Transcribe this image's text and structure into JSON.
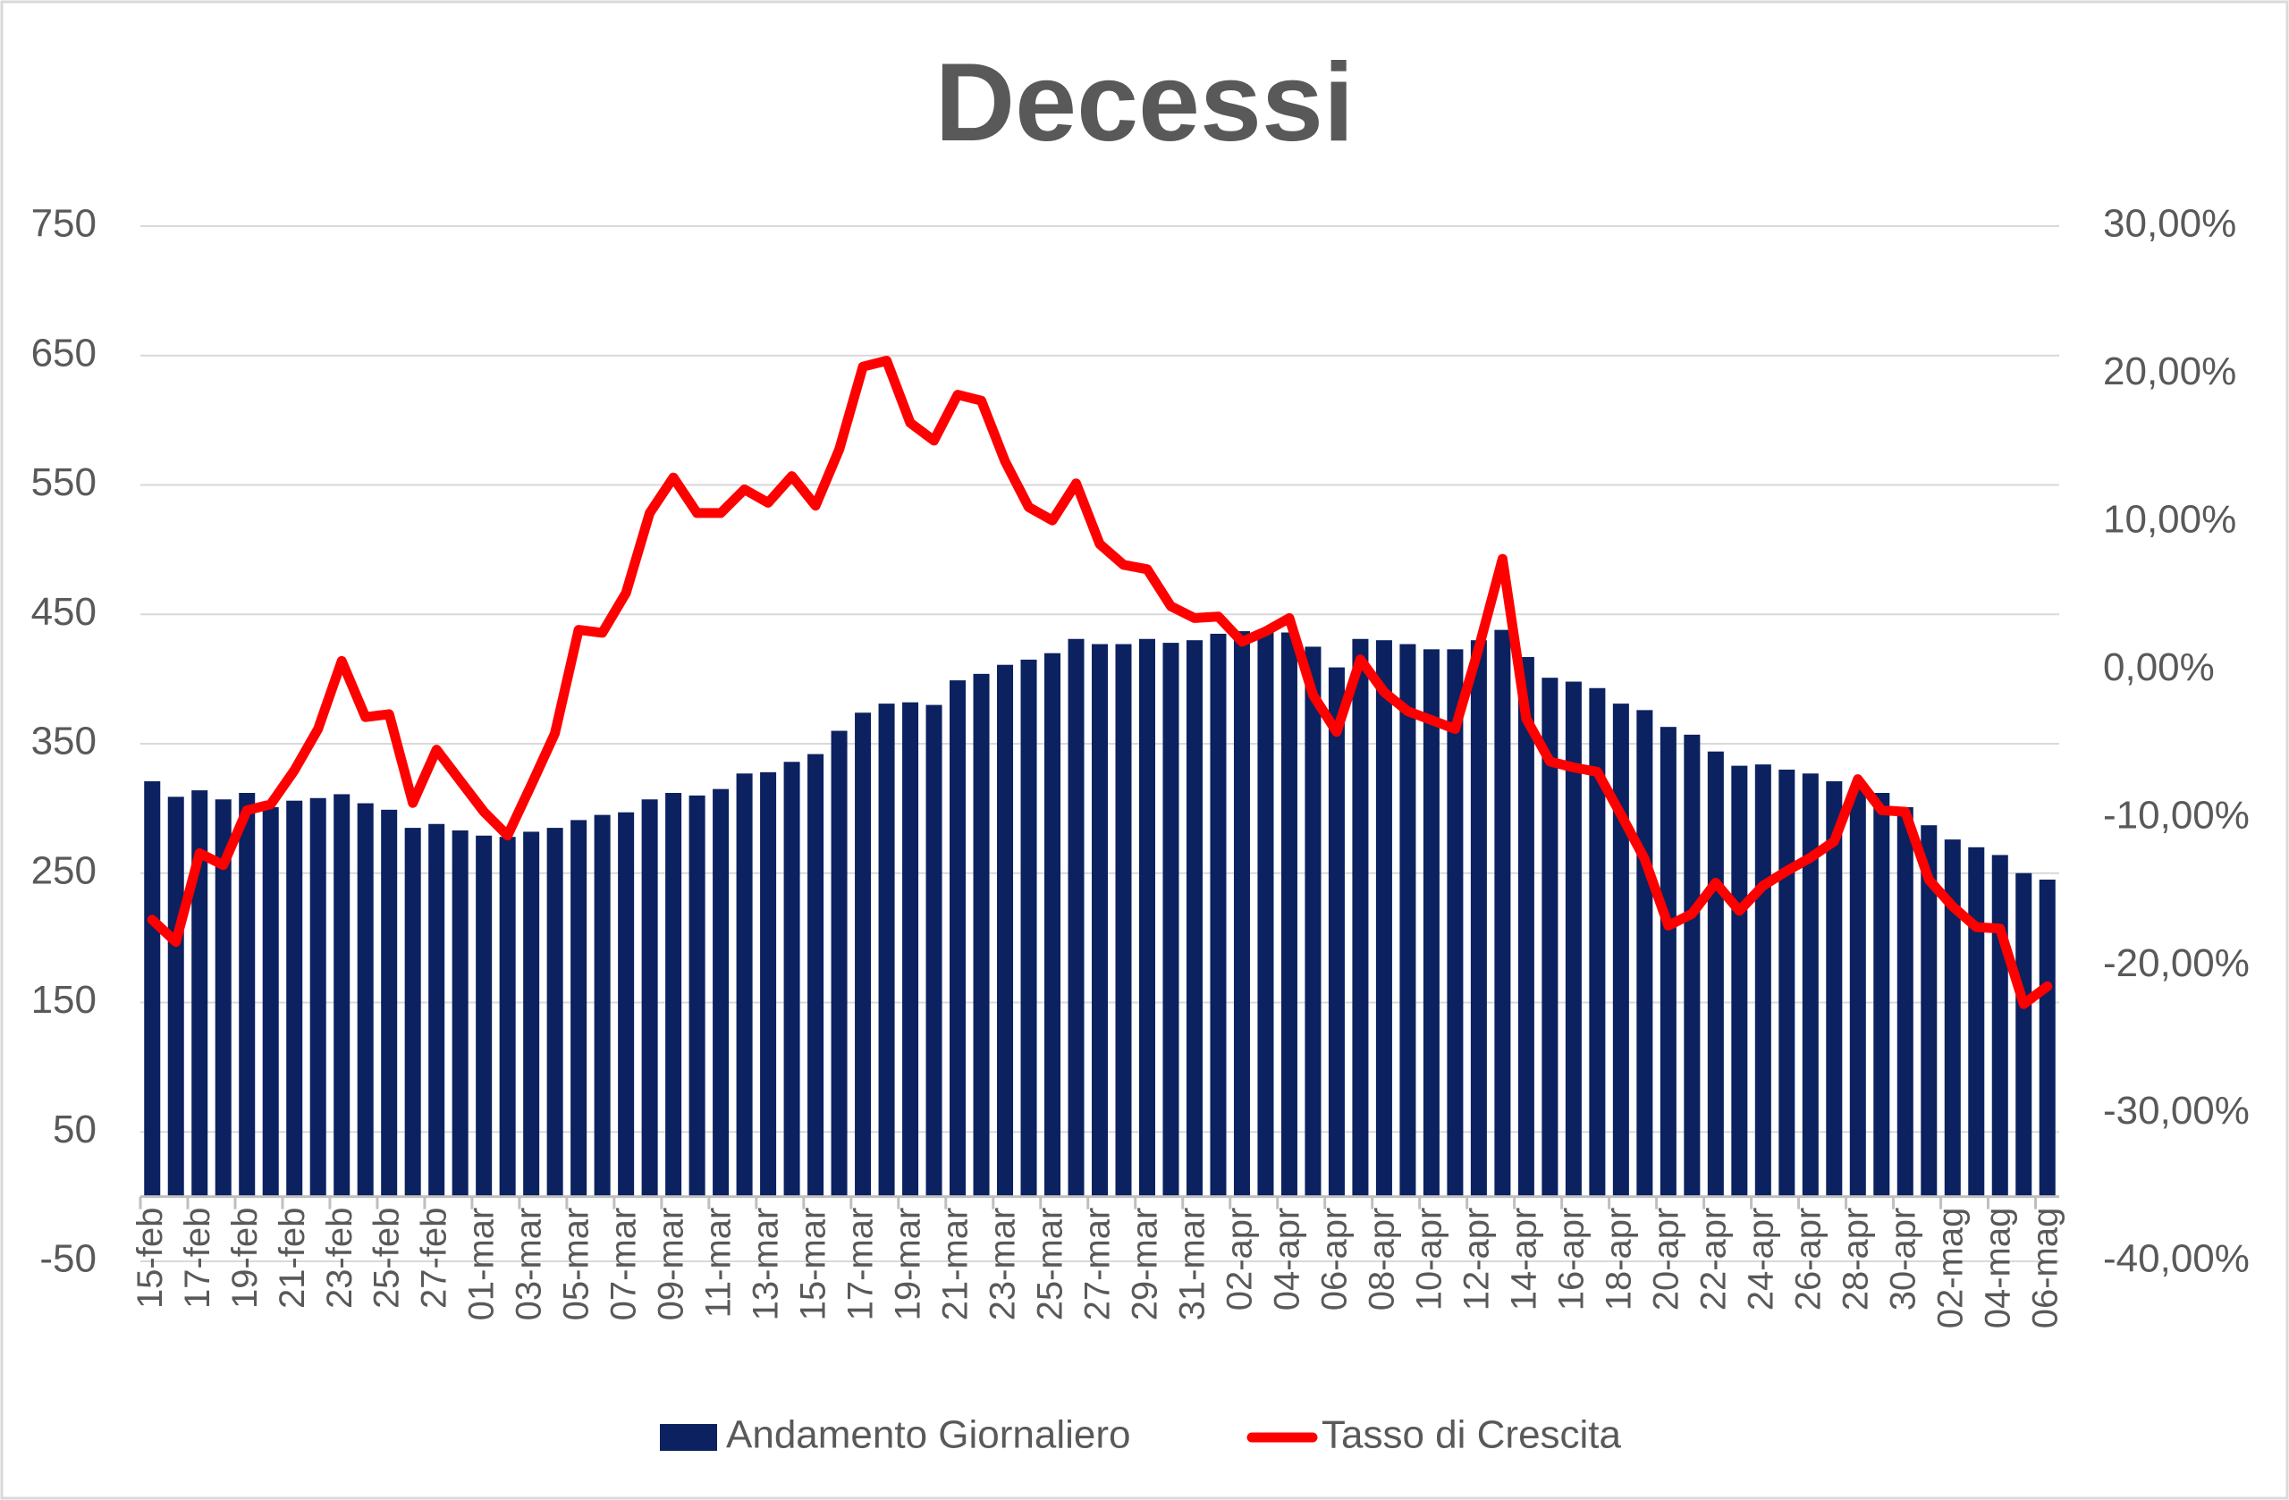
{
  "chart_data": {
    "type": "bar_line",
    "title": "Decessi",
    "categories": [
      "15-feb",
      null,
      "17-feb",
      null,
      "19-feb",
      null,
      "21-feb",
      null,
      "23-feb",
      null,
      "25-feb",
      null,
      "27-feb",
      null,
      "01-mar",
      null,
      "03-mar",
      null,
      "05-mar",
      null,
      "07-mar",
      null,
      "09-mar",
      null,
      "11-mar",
      null,
      "13-mar",
      null,
      "15-mar",
      null,
      "17-mar",
      null,
      "19-mar",
      null,
      "21-mar",
      null,
      "23-mar",
      null,
      "25-mar",
      null,
      "27-mar",
      null,
      "29-mar",
      null,
      "31-mar",
      null,
      "02-apr",
      null,
      "04-apr",
      null,
      "06-apr",
      null,
      "08-apr",
      null,
      "10-apr",
      null,
      "12-apr",
      null,
      "14-apr",
      null,
      "16-apr",
      null,
      "18-apr",
      null,
      "20-apr",
      null,
      "22-apr",
      null,
      "24-apr",
      null,
      "26-apr",
      null,
      "28-apr",
      null,
      "30-apr",
      null,
      "02-mag",
      null,
      "04-mag",
      null,
      "06-mag"
    ],
    "series": [
      {
        "name": "Andamento Giornaliero",
        "color": "#0b2160",
        "kind": "bar",
        "values": [
          321,
          309,
          314,
          307,
          312,
          301,
          306,
          308,
          311,
          304,
          299,
          285,
          288,
          283,
          279,
          278,
          282,
          285,
          291,
          295,
          297,
          307,
          312,
          310,
          315,
          327,
          328,
          336,
          342,
          360,
          374,
          381,
          382,
          380,
          399,
          404,
          411,
          415,
          420,
          431,
          427,
          427,
          431,
          428,
          430,
          435,
          437,
          436,
          436,
          425,
          409,
          431,
          430,
          427,
          423,
          423,
          430,
          438,
          417,
          401,
          398,
          393,
          381,
          376,
          363,
          357,
          344,
          333,
          334,
          330,
          327,
          321,
          316,
          312,
          301,
          287,
          276,
          270,
          264,
          250,
          245
        ]
      },
      {
        "name": "Tasso di Crescita",
        "color": "#ff0000",
        "kind": "line",
        "axis": "y2",
        "values": [
          -16.9,
          -18.4,
          -12.4,
          -13.2,
          -9.5,
          -9.1,
          -6.8,
          -4.0,
          0.6,
          -3.2,
          -3.0,
          -9.0,
          -5.4,
          -7.5,
          -9.6,
          -11.2,
          -7.8,
          -4.3,
          2.7,
          2.5,
          5.2,
          10.6,
          13.0,
          10.6,
          10.6,
          12.2,
          11.3,
          13.1,
          11.1,
          14.9,
          20.5,
          20.9,
          16.7,
          15.5,
          18.6,
          18.2,
          14.1,
          11.0,
          10.1,
          12.6,
          8.5,
          7.1,
          6.8,
          4.3,
          3.5,
          3.6,
          1.9,
          2.6,
          3.5,
          -1.7,
          -4.2,
          0.7,
          -1.5,
          -2.8,
          -3.4,
          -4.0,
          1.5,
          7.5,
          -3.3,
          -6.2,
          -6.6,
          -6.9,
          -9.8,
          -12.8,
          -17.3,
          -16.5,
          -14.4,
          -16.3,
          -14.6,
          -13.6,
          -12.7,
          -11.6,
          -7.4,
          -9.5,
          -9.6,
          -14.2,
          -16.0,
          -17.4,
          -17.5,
          -22.6,
          -21.4
        ]
      }
    ],
    "ylim": [
      -50,
      750
    ],
    "yticks": [
      -50,
      50,
      150,
      250,
      350,
      450,
      550,
      650,
      750
    ],
    "y2lim": [
      -40,
      30
    ],
    "y2ticks": [
      {
        "value": -40,
        "label": "-40,00%"
      },
      {
        "value": -30,
        "label": "-30,00%"
      },
      {
        "value": -20,
        "label": "-20,00%"
      },
      {
        "value": -10,
        "label": "-10,00%"
      },
      {
        "value": 0,
        "label": "0,00%"
      },
      {
        "value": 10,
        "label": "10,00%"
      },
      {
        "value": 20,
        "label": "20,00%"
      },
      {
        "value": 30,
        "label": "30,00%"
      }
    ],
    "grid": true,
    "legend": "bottom"
  }
}
